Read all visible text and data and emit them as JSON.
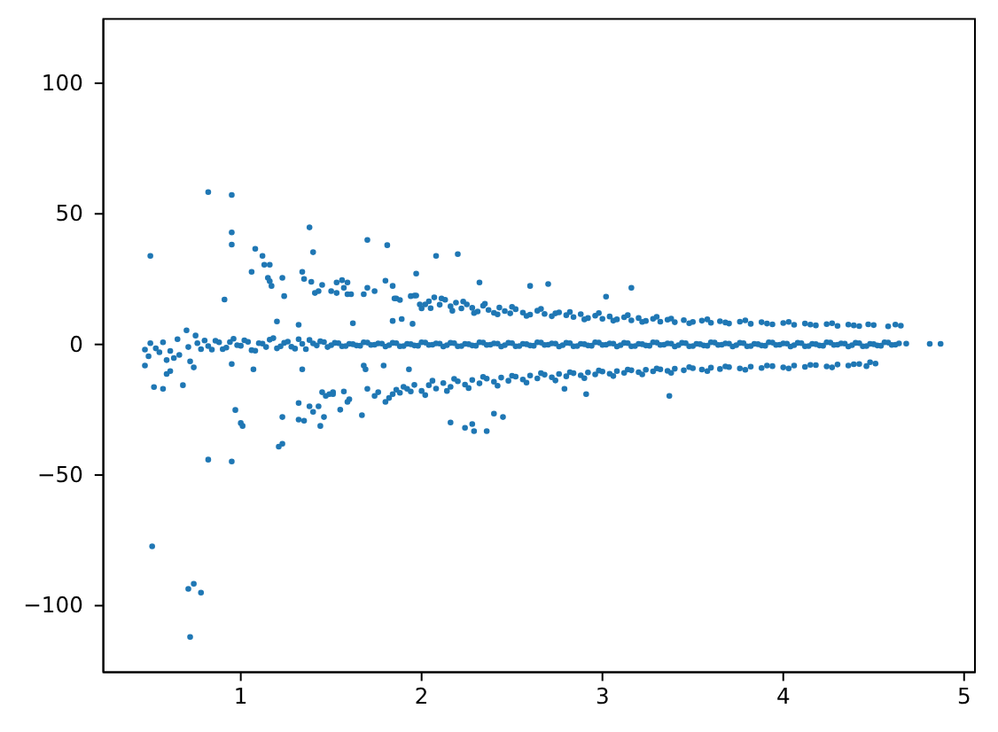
{
  "chart_data": {
    "type": "scatter",
    "marker": "circle",
    "color": "#1f77b4",
    "xlim": [
      0.24,
      5.06
    ],
    "ylim": [
      -125.5,
      124.6
    ],
    "xticks": [
      1,
      2,
      3,
      4,
      5
    ],
    "yticks": [
      {
        "value": -100,
        "label": "−100"
      },
      {
        "value": -50,
        "label": "−50"
      },
      0,
      50,
      100
    ],
    "x": [
      0.8,
      0.84,
      0.88,
      0.92,
      0.96,
      1.0,
      1.04,
      1.08,
      1.12,
      1.16,
      1.2,
      1.24,
      1.28,
      1.32,
      1.36,
      1.4,
      1.44,
      1.48,
      1.52,
      1.56,
      1.6,
      1.64,
      1.68,
      1.72,
      1.76,
      1.8,
      1.84,
      1.88,
      1.92,
      1.96,
      2.0,
      2.04,
      2.08,
      2.12,
      2.16,
      2.2,
      2.24,
      2.28,
      2.32,
      2.36,
      2.4,
      2.44,
      2.48,
      2.52,
      2.56,
      2.6,
      2.64,
      2.68,
      2.72,
      2.76,
      2.8,
      2.84,
      2.88,
      2.92,
      2.96,
      3.0,
      3.04,
      3.08,
      3.12,
      3.16,
      3.2,
      3.24,
      3.28,
      3.32,
      3.36,
      3.4,
      3.44,
      3.48,
      3.52,
      3.56,
      3.6,
      3.64,
      3.68,
      3.72,
      3.76,
      3.8,
      3.84,
      3.88,
      3.92,
      3.96,
      4.0,
      4.04,
      4.08,
      4.12,
      4.16,
      4.2,
      4.24,
      4.28,
      4.32,
      4.36,
      4.4,
      4.44,
      4.48,
      4.52,
      4.56,
      4.6,
      4.64,
      0.82,
      0.86,
      0.9,
      0.94,
      0.98,
      1.02,
      1.06,
      1.1,
      1.14,
      1.18,
      1.22,
      1.26,
      1.3,
      1.34,
      1.38,
      1.42,
      1.46,
      1.5,
      1.54,
      1.58,
      1.62,
      1.66,
      1.7,
      1.74,
      1.78,
      1.82,
      1.86,
      1.9,
      1.94,
      1.98,
      2.02,
      2.06,
      2.1,
      2.14,
      2.18,
      2.22,
      2.26,
      2.3,
      2.34,
      2.38,
      2.42,
      2.46,
      2.5,
      2.54,
      2.58,
      2.62,
      2.66,
      2.7,
      2.74,
      2.78,
      2.82,
      2.86,
      2.9,
      2.94,
      2.98,
      3.02,
      3.06,
      3.1,
      3.14,
      3.18,
      3.22,
      3.26,
      3.3,
      3.34,
      3.38,
      3.42,
      3.46,
      3.5,
      3.54,
      3.58,
      3.62,
      3.66,
      3.7,
      3.74,
      3.78,
      3.82,
      3.86,
      3.9,
      3.94,
      3.98,
      4.02,
      4.06,
      4.1,
      4.14,
      4.18,
      4.22,
      4.26,
      4.3,
      4.34,
      4.38,
      4.42,
      4.46,
      4.5,
      4.54,
      4.58,
      4.62,
      0.47,
      0.47,
      0.49,
      0.5,
      0.52,
      0.53,
      0.55,
      0.57,
      0.57,
      0.59,
      0.59,
      0.61,
      0.61,
      0.63,
      0.65,
      0.66,
      0.68,
      0.7,
      0.71,
      0.72,
      0.74,
      0.75,
      0.76,
      0.78,
      0.5,
      0.82,
      0.95,
      0.95,
      0.95,
      0.91,
      1.08,
      1.12,
      1.13,
      1.16,
      1.06,
      1.15,
      1.16,
      1.17,
      1.2,
      1.23,
      1.24,
      1.32,
      1.34,
      1.35,
      1.38,
      1.4,
      1.39,
      1.41,
      1.45,
      1.43,
      1.62,
      1.7,
      1.81,
      1.97,
      1.8,
      2.08,
      2.2,
      2.32,
      2.6,
      2.7,
      3.02,
      3.16,
      1.5,
      1.53,
      1.53,
      1.56,
      1.59,
      1.57,
      1.59,
      1.61,
      1.68,
      1.7,
      1.74,
      1.84,
      1.85,
      1.86,
      1.88,
      1.94,
      1.96,
      1.97,
      1.99,
      2.0,
      2.02,
      1.84,
      1.89,
      1.95,
      2.04,
      2.07,
      2.1,
      2.13,
      2.16,
      2.19,
      2.22,
      2.25,
      2.28,
      2.31,
      2.34,
      2.37,
      2.4,
      2.43,
      2.46,
      2.49,
      2.52,
      2.56,
      2.6,
      2.64,
      2.68,
      2.72,
      2.76,
      2.8,
      2.84,
      2.88,
      2.92,
      2.96,
      3.0,
      3.04,
      3.08,
      3.12,
      3.16,
      3.2,
      3.24,
      3.28,
      3.32,
      3.36,
      3.4,
      3.45,
      3.5,
      3.55,
      3.6,
      3.65,
      3.7,
      3.76,
      3.82,
      3.88,
      3.94,
      4.0,
      4.06,
      4.12,
      4.18,
      4.24,
      4.3,
      4.36,
      4.42,
      4.5,
      4.58,
      4.65,
      2.05,
      2.11,
      2.17,
      2.23,
      2.29,
      2.35,
      2.42,
      2.5,
      2.58,
      2.66,
      2.74,
      2.82,
      2.9,
      2.98,
      3.06,
      3.14,
      3.22,
      3.3,
      3.38,
      3.48,
      3.58,
      3.68,
      3.79,
      3.91,
      4.03,
      4.15,
      4.27,
      4.39,
      4.47,
      4.62,
      1.45,
      1.47,
      1.49,
      1.51,
      1.51,
      1.55,
      1.57,
      1.59,
      1.6,
      1.67,
      1.68,
      1.69,
      1.7,
      1.74,
      1.76,
      1.8,
      1.82,
      1.84,
      1.86,
      1.88,
      1.9,
      1.92,
      1.94,
      1.96,
      1.79,
      1.93,
      1.38,
      1.4,
      1.43,
      1.44,
      1.46,
      1.32,
      1.32,
      1.35,
      1.21,
      1.23,
      1.23,
      0.97,
      1.0,
      1.01,
      0.82,
      0.95,
      0.51,
      0.71,
      0.74,
      0.78,
      0.72,
      2.16,
      2.24,
      2.29,
      2.28,
      2.36,
      2.4,
      2.45,
      2.79,
      2.91,
      3.37,
      0.95,
      1.07,
      1.34,
      2.0,
      2.04,
      2.08,
      2.12,
      2.16,
      2.2,
      2.24,
      2.28,
      2.32,
      2.36,
      2.4,
      2.44,
      2.48,
      2.52,
      2.56,
      2.6,
      2.64,
      2.68,
      2.72,
      2.76,
      2.8,
      2.84,
      2.88,
      2.92,
      2.96,
      3.0,
      3.04,
      3.08,
      3.12,
      3.16,
      3.2,
      3.24,
      3.28,
      3.32,
      3.36,
      3.4,
      3.45,
      3.5,
      3.55,
      3.6,
      3.65,
      3.7,
      3.76,
      3.82,
      3.88,
      3.94,
      4.0,
      4.06,
      4.12,
      4.18,
      4.24,
      4.3,
      4.36,
      4.42,
      4.51,
      2.02,
      2.06,
      2.14,
      2.18,
      2.26,
      2.34,
      2.42,
      2.5,
      2.58,
      2.66,
      2.74,
      2.82,
      2.9,
      2.98,
      3.06,
      3.14,
      3.22,
      3.3,
      3.38,
      3.48,
      3.58,
      3.68,
      3.79,
      3.91,
      4.03,
      4.15,
      4.27,
      4.39,
      4.46,
      4.48,
      4.68,
      4.81,
      4.87
    ],
    "values": [
      1.5,
      -2.0,
      0.8,
      -1.2,
      2.2,
      -0.5,
      1.0,
      -2.4,
      0.3,
      1.8,
      -1.5,
      0.6,
      -0.9,
      2.0,
      -1.8,
      0.4,
      1.2,
      -1.0,
      0.6,
      -0.7,
      0.2,
      -0.4,
      0.8,
      -0.2,
      0.4,
      -0.8,
      0.6,
      -0.7,
      0.2,
      -0.4,
      0.8,
      -0.2,
      0.4,
      -0.8,
      0.6,
      -0.7,
      0.2,
      -0.4,
      0.8,
      -0.2,
      0.4,
      -0.8,
      0.6,
      -0.7,
      0.2,
      -0.4,
      0.8,
      -0.2,
      0.4,
      -0.8,
      0.6,
      -0.7,
      0.2,
      -0.4,
      0.8,
      -0.2,
      0.4,
      -0.8,
      0.6,
      -0.7,
      0.2,
      -0.4,
      0.8,
      -0.2,
      0.4,
      -0.8,
      0.6,
      -0.7,
      0.2,
      -0.4,
      0.8,
      -0.2,
      0.4,
      -0.8,
      0.6,
      -0.7,
      0.2,
      -0.4,
      0.8,
      -0.2,
      0.4,
      -0.8,
      0.6,
      -0.7,
      0.2,
      -0.4,
      0.8,
      -0.2,
      0.4,
      -0.8,
      0.6,
      -0.7,
      0.2,
      -0.4,
      0.8,
      -0.2,
      0.4,
      -0.6,
      1.4,
      -1.8,
      0.9,
      -0.3,
      1.6,
      -2.2,
      0.5,
      -1.0,
      2.4,
      -0.7,
      1.1,
      -1.6,
      0.2,
      1.7,
      -0.4,
      0.9,
      -0.3,
      0.5,
      -0.6,
      0.1,
      -0.5,
      0.7,
      -0.1,
      0.3,
      -0.3,
      0.5,
      -0.6,
      0.1,
      -0.5,
      0.7,
      -0.1,
      0.3,
      -0.3,
      0.5,
      -0.6,
      0.1,
      -0.5,
      0.7,
      -0.1,
      0.3,
      -0.3,
      0.5,
      -0.6,
      0.1,
      -0.5,
      0.7,
      -0.1,
      0.3,
      -0.3,
      0.5,
      -0.6,
      0.1,
      -0.5,
      0.7,
      -0.1,
      0.3,
      -0.3,
      0.5,
      -0.6,
      0.1,
      -0.5,
      0.7,
      -0.1,
      0.3,
      -0.3,
      0.5,
      -0.6,
      0.1,
      -0.5,
      0.7,
      -0.1,
      0.3,
      -0.3,
      0.5,
      -0.6,
      0.1,
      -0.5,
      0.7,
      -0.1,
      0.3,
      -0.3,
      0.5,
      -0.6,
      0.1,
      -0.5,
      0.7,
      -0.1,
      0.3,
      -0.3,
      0.5,
      -0.6,
      0.1,
      -0.5,
      0.7,
      -0.1,
      -2.0,
      -8.1,
      -4.5,
      0.5,
      -16.3,
      -1.5,
      -3.0,
      -17.0,
      0.8,
      -11.3,
      -6.0,
      -2.5,
      -10.2,
      -5.2,
      2.0,
      -4.0,
      -15.6,
      5.4,
      -1.0,
      -6.5,
      -8.8,
      3.4,
      0.5,
      -1.8,
      33.9,
      58.3,
      57.2,
      42.9,
      38.2,
      17.2,
      36.6,
      33.9,
      30.5,
      30.5,
      27.8,
      25.5,
      24.2,
      22.4,
      8.8,
      25.5,
      18.5,
      7.5,
      27.8,
      25.1,
      44.8,
      35.3,
      24.0,
      19.7,
      22.8,
      20.4,
      8.1,
      40.0,
      38.0,
      27.1,
      24.4,
      33.9,
      34.6,
      23.7,
      22.4,
      23.1,
      18.3,
      21.7,
      20.4,
      23.7,
      19.7,
      24.6,
      23.7,
      21.7,
      19.2,
      19.2,
      19.2,
      21.7,
      20.4,
      22.4,
      17.6,
      17.6,
      17.0,
      18.5,
      18.7,
      18.7,
      15.3,
      13.8,
      15.3,
      9.0,
      9.7,
      7.9,
      16.5,
      18.0,
      15.2,
      17.1,
      14.6,
      16.0,
      13.8,
      15.3,
      14.0,
      12.6,
      14.8,
      13.2,
      12.1,
      14.1,
      12.8,
      11.9,
      13.5,
      12.2,
      11.4,
      12.9,
      11.7,
      10.8,
      12.3,
      11.2,
      10.5,
      11.6,
      10.1,
      11.0,
      9.8,
      10.7,
      9.6,
      10.4,
      9.2,
      10.1,
      9.0,
      9.8,
      8.7,
      9.5,
      8.5,
      9.3,
      8.6,
      9.1,
      8.3,
      8.9,
      8.0,
      8.7,
      7.9,
      8.5,
      7.7,
      8.2,
      7.5,
      8.0,
      7.3,
      7.8,
      7.1,
      7.6,
      7.0,
      7.4,
      6.9,
      7.2,
      13.9,
      17.6,
      12.9,
      16.4,
      12.0,
      15.6,
      11.5,
      14.4,
      10.9,
      13.6,
      11.9,
      12.4,
      9.6,
      12.0,
      9.1,
      11.2,
      8.6,
      10.6,
      9.9,
      8.1,
      9.6,
      8.4,
      9.2,
      8.0,
      8.6,
      7.6,
      8.1,
      7.3,
      7.7,
      7.6,
      -18.3,
      -19.7,
      -19.0,
      -18.3,
      -19.0,
      -25.0,
      -18.0,
      -22.0,
      -21.0,
      -27.1,
      -8.1,
      -9.5,
      -17.0,
      -19.7,
      -18.3,
      -22.0,
      -20.5,
      -19.0,
      -17.3,
      -18.5,
      -16.2,
      -17.0,
      -18.0,
      -15.5,
      -8.1,
      -9.5,
      -23.7,
      -25.8,
      -23.7,
      -31.2,
      -27.8,
      -22.4,
      -28.8,
      -29.2,
      -39.1,
      -38.0,
      -27.8,
      -25.1,
      -30.1,
      -31.2,
      -44.1,
      -44.8,
      -77.3,
      -93.6,
      -91.6,
      -95.0,
      -112.0,
      -29.9,
      -31.9,
      -33.2,
      -30.5,
      -33.2,
      -26.5,
      -27.8,
      -17.0,
      -19.0,
      -19.7,
      -7.5,
      -9.5,
      -9.5,
      -17.8,
      -15.6,
      -16.9,
      -14.8,
      -16.2,
      -14.1,
      -15.4,
      -13.6,
      -14.9,
      -13.1,
      -14.3,
      -12.7,
      -13.9,
      -12.3,
      -13.4,
      -11.9,
      -13.0,
      -11.6,
      -12.6,
      -11.3,
      -12.2,
      -11.0,
      -11.8,
      -10.7,
      -11.5,
      -10.4,
      -11.2,
      -10.2,
      -10.9,
      -9.9,
      -10.6,
      -9.7,
      -10.3,
      -9.5,
      -10.1,
      -9.3,
      -9.9,
      -9.1,
      -9.6,
      -8.9,
      -9.4,
      -8.7,
      -9.2,
      -8.5,
      -9.0,
      -8.3,
      -8.8,
      -8.1,
      -8.6,
      -7.9,
      -8.4,
      -7.7,
      -8.1,
      -7.5,
      -7.3,
      -19.4,
      -13.9,
      -17.8,
      -13.2,
      -16.7,
      -12.4,
      -15.8,
      -12.0,
      -14.6,
      -11.0,
      -13.8,
      -10.6,
      -12.9,
      -10.0,
      -12.1,
      -9.6,
      -11.5,
      -9.2,
      -10.9,
      -8.7,
      -10.2,
      -8.4,
      -9.7,
      -8.1,
      -9.2,
      -7.8,
      -8.8,
      -7.6,
      -8.3,
      -6.8,
      0.3,
      0.2,
      0.2
    ]
  }
}
